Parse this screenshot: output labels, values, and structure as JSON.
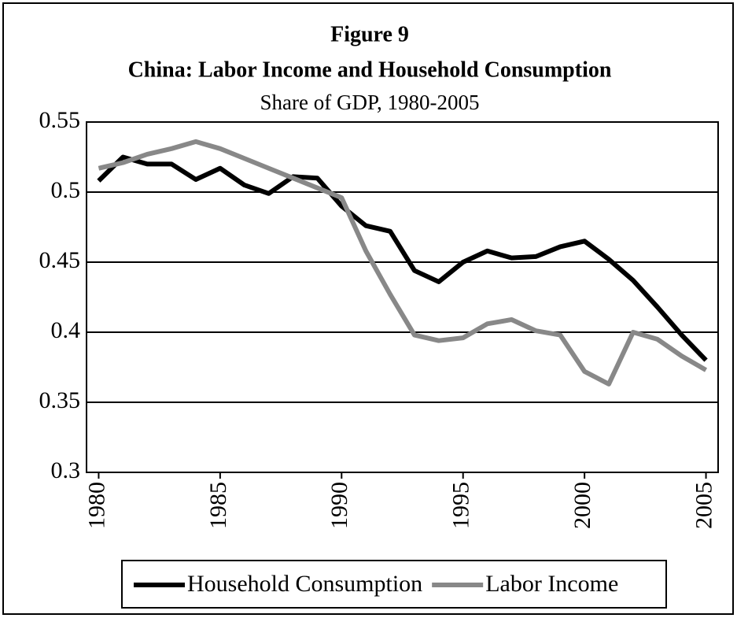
{
  "chart_data": {
    "type": "line",
    "title": "Figure 9",
    "subtitle": "China: Labor Income and Household Consumption",
    "subtitle2": "Share of GDP, 1980-2005",
    "x": [
      1980,
      1981,
      1982,
      1983,
      1984,
      1985,
      1986,
      1987,
      1988,
      1989,
      1990,
      1991,
      1992,
      1993,
      1994,
      1995,
      1996,
      1997,
      1998,
      1999,
      2000,
      2001,
      2002,
      2003,
      2004,
      2005
    ],
    "series": [
      {
        "name": "Household Consumption",
        "color": "#000000",
        "values": [
          0.508,
          0.525,
          0.52,
          0.52,
          0.509,
          0.517,
          0.505,
          0.499,
          0.511,
          0.51,
          0.49,
          0.476,
          0.472,
          0.444,
          0.436,
          0.45,
          0.458,
          0.453,
          0.454,
          0.461,
          0.465,
          0.452,
          0.437,
          0.418,
          0.398,
          0.38
        ]
      },
      {
        "name": "Labor Income",
        "color": "#888888",
        "values": [
          0.517,
          0.521,
          0.527,
          0.531,
          0.536,
          0.531,
          0.524,
          0.517,
          0.51,
          0.503,
          0.496,
          0.458,
          0.427,
          0.398,
          0.394,
          0.396,
          0.406,
          0.409,
          0.401,
          0.398,
          0.372,
          0.363,
          0.4,
          0.395,
          0.383,
          0.373
        ]
      }
    ],
    "xlim": [
      1979.5,
      2005.5
    ],
    "xticks": [
      1980,
      1985,
      1990,
      1995,
      2000,
      2005
    ],
    "ylim": [
      0.3,
      0.55
    ],
    "yticks": [
      0.3,
      0.35,
      0.4,
      0.45,
      0.5,
      0.55
    ],
    "grid": true,
    "legend": "bottom"
  }
}
